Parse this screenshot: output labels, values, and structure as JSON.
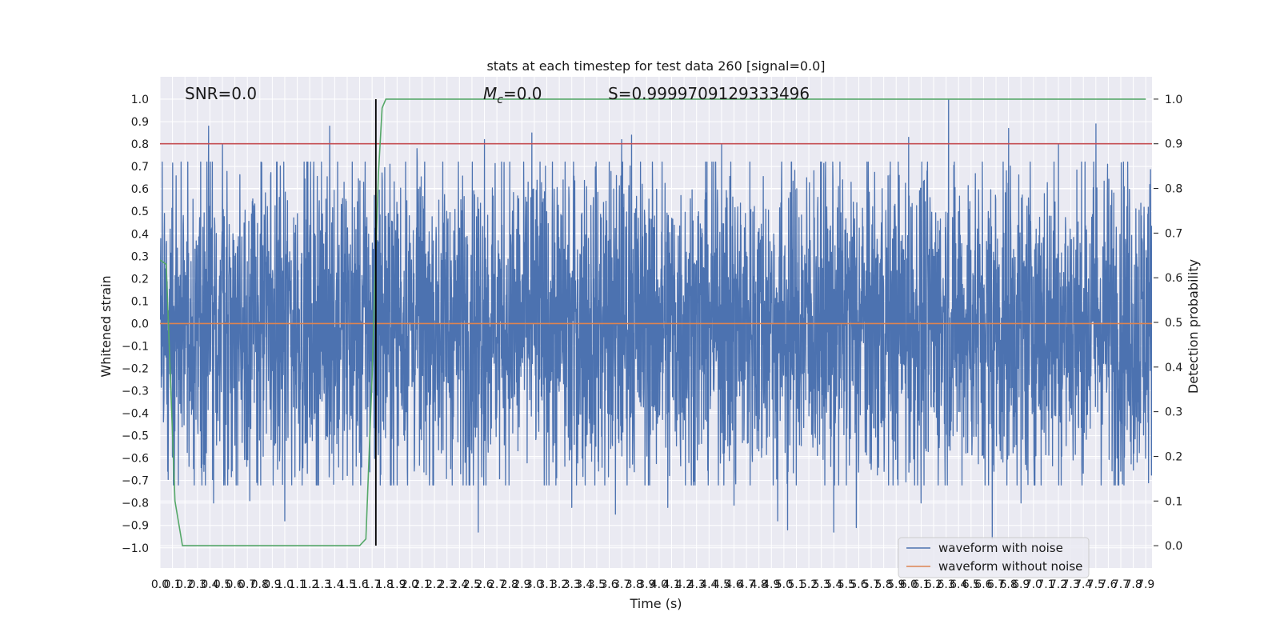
{
  "chart_data": {
    "type": "line",
    "title": "stats at each timestep for test data 260 [signal=0.0]",
    "xlabel": "Time (s)",
    "ylabel": "Whitened strain",
    "ylabel_right": "Detection probability",
    "xlim": [
      0.0,
      7.95
    ],
    "ylim": [
      -1.09,
      1.1
    ],
    "ylim_right": [
      -0.05,
      1.05
    ],
    "x_ticks": [
      0.0,
      0.1,
      0.2,
      0.3,
      0.4,
      0.5,
      0.6,
      0.7,
      0.8,
      0.9,
      1.0,
      1.1,
      1.2,
      1.3,
      1.4,
      1.5,
      1.6,
      1.7,
      1.8,
      1.9,
      2.0,
      2.1,
      2.2,
      2.3,
      2.4,
      2.5,
      2.6,
      2.7,
      2.8,
      2.9,
      3.0,
      3.1,
      3.2,
      3.3,
      3.4,
      3.5,
      3.6,
      3.7,
      3.8,
      3.9,
      4.0,
      4.1,
      4.2,
      4.3,
      4.4,
      4.5,
      4.6,
      4.7,
      4.8,
      4.9,
      5.0,
      5.1,
      5.2,
      5.3,
      5.4,
      5.5,
      5.6,
      5.7,
      5.8,
      5.9,
      6.0,
      6.1,
      6.2,
      6.3,
      6.4,
      6.5,
      6.6,
      6.7,
      6.8,
      6.9,
      7.0,
      7.1,
      7.2,
      7.3,
      7.4,
      7.5,
      7.6,
      7.7,
      7.8,
      7.9
    ],
    "y_ticks": [
      1.0,
      0.9,
      0.8,
      0.7,
      0.6,
      0.5,
      0.4,
      0.3,
      0.2,
      0.1,
      0.0,
      -0.1,
      -0.2,
      -0.3,
      -0.4,
      -0.5,
      -0.6,
      -0.7,
      -0.8,
      -0.9,
      -1.0
    ],
    "y_ticks_right": [
      1.0,
      0.9,
      0.8,
      0.7,
      0.6,
      0.5,
      0.4,
      0.3,
      0.2,
      0.1,
      0.0
    ],
    "grid": true,
    "annotations": {
      "snr": "SNR=0.0",
      "mc_symbol": "M",
      "mc_sub": "c",
      "mc_value": "=0.0",
      "s": "S=0.9999709129333496"
    },
    "threshold": {
      "axis": "right",
      "y": 0.9,
      "color": "#c44e52"
    },
    "vline": {
      "x": 1.73,
      "y0": -0.99,
      "y1": 1.0,
      "color": "#000000"
    },
    "legend": {
      "location": "lower-right",
      "entries": [
        {
          "label": "waveform with noise",
          "color": "#4c72b0"
        },
        {
          "label": "waveform without noise",
          "color": "#dd8452"
        }
      ]
    },
    "series": [
      {
        "name": "waveform with noise",
        "axis": "left",
        "color": "#4c72b0",
        "n_samples": 4000,
        "amplitude_typical": 0.35,
        "peaks_positive": [
          {
            "x": 0.39,
            "y": 0.88
          },
          {
            "x": 1.36,
            "y": 0.88
          },
          {
            "x": 2.6,
            "y": 0.82
          },
          {
            "x": 2.98,
            "y": 0.85
          },
          {
            "x": 3.7,
            "y": 0.82
          },
          {
            "x": 3.78,
            "y": 0.84
          },
          {
            "x": 4.5,
            "y": 0.8
          },
          {
            "x": 6.0,
            "y": 0.83
          },
          {
            "x": 6.32,
            "y": 1.0
          },
          {
            "x": 6.8,
            "y": 0.87
          },
          {
            "x": 7.2,
            "y": 0.8
          },
          {
            "x": 7.5,
            "y": 0.89
          },
          {
            "x": 0.5,
            "y": 0.8
          },
          {
            "x": 2.06,
            "y": 0.78
          },
          {
            "x": 5.4,
            "y": 0.77
          }
        ],
        "peaks_negative": [
          {
            "x": 1.0,
            "y": -0.88
          },
          {
            "x": 2.55,
            "y": -0.93
          },
          {
            "x": 5.03,
            "y": -0.92
          },
          {
            "x": 5.4,
            "y": -0.93
          },
          {
            "x": 5.58,
            "y": -0.91
          },
          {
            "x": 6.67,
            "y": -0.96
          },
          {
            "x": 4.95,
            "y": -0.88
          },
          {
            "x": 3.3,
            "y": -0.82
          },
          {
            "x": 4.07,
            "y": -0.82
          },
          {
            "x": 3.65,
            "y": -0.85
          },
          {
            "x": 0.72,
            "y": -0.79
          },
          {
            "x": 0.43,
            "y": -0.8
          },
          {
            "x": 6.9,
            "y": -0.8
          },
          {
            "x": 4.6,
            "y": -0.81
          },
          {
            "x": 6.1,
            "y": -0.8
          }
        ]
      },
      {
        "name": "waveform without noise",
        "axis": "left",
        "color": "#dd8452",
        "x": [
          0.0,
          7.95
        ],
        "y": [
          0.0,
          0.0
        ]
      },
      {
        "axis": "right",
        "color": "#55a868",
        "x": [
          0.0,
          0.05,
          0.12,
          0.18,
          0.5,
          0.75,
          1.2,
          1.5,
          1.6,
          1.65,
          1.7,
          1.72,
          1.75,
          1.78,
          1.81,
          2.5,
          4.0,
          6.0,
          7.9
        ],
        "y": [
          0.64,
          0.63,
          0.1,
          0.0,
          0.0,
          0.0,
          0.0,
          0.0,
          0.0,
          0.015,
          0.38,
          0.57,
          0.83,
          0.98,
          1.0,
          1.0,
          1.0,
          1.0,
          1.0
        ]
      }
    ]
  }
}
